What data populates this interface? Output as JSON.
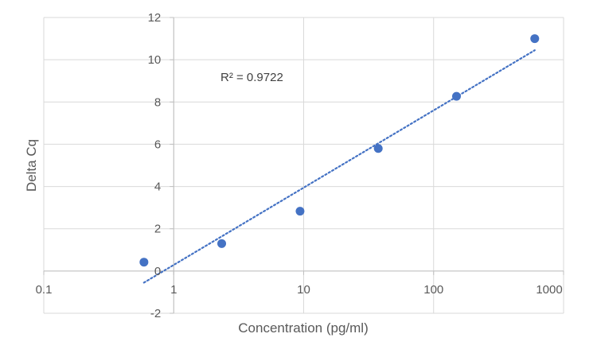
{
  "chart_data": {
    "type": "scatter",
    "xlabel": "Concentration (pg/ml)",
    "ylabel": "Delta Cq",
    "x_scale": "log",
    "xlim": [
      0.1,
      1000
    ],
    "ylim": [
      -2,
      12
    ],
    "x_ticks": [
      0.1,
      1,
      10,
      100,
      1000
    ],
    "x_tick_labels": [
      "0.1",
      "1",
      "10",
      "100",
      "1000"
    ],
    "y_ticks": [
      -2,
      0,
      2,
      4,
      6,
      8,
      10,
      12
    ],
    "y_tick_labels": [
      "-2",
      "0",
      "2",
      "4",
      "6",
      "8",
      "10",
      "12"
    ],
    "grid": true,
    "series": [
      {
        "x": [
          0.59,
          2.34,
          9.38,
          37.5,
          150,
          600
        ],
        "y": [
          0.42,
          1.3,
          2.83,
          5.8,
          8.27,
          11.0
        ],
        "color": "#4472c4"
      }
    ],
    "trendline": {
      "type": "logarithmic",
      "style": "dotted",
      "color": "#4472c4",
      "x_range": [
        0.59,
        600
      ],
      "y_at_start": -0.55,
      "y_at_end": 10.45
    },
    "annotations": [
      {
        "text": "R² = 0.9722"
      }
    ]
  }
}
